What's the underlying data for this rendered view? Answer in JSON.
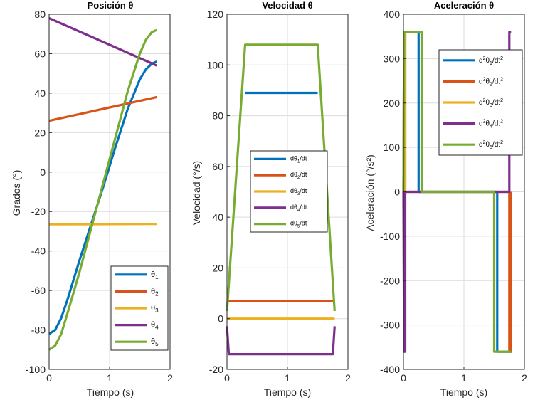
{
  "colors": {
    "blue": "#0072BD",
    "orange": "#D95319",
    "yellow": "#EDB120",
    "purple": "#7E2F8E",
    "green": "#77AC30",
    "grid": "#dcdcdc",
    "axis": "#262626"
  },
  "chart_data": [
    {
      "type": "line",
      "title": "Posición θ",
      "xlabel": "Tiempo (s)",
      "ylabel": "Grados (°)",
      "xlim": [
        0,
        2
      ],
      "ylim": [
        -100,
        80
      ],
      "xticks": [
        0,
        1,
        2
      ],
      "yticks": [
        -100,
        -80,
        -60,
        -40,
        -20,
        0,
        20,
        40,
        60,
        80
      ],
      "grid": true,
      "legend": "bottom-right",
      "series": [
        {
          "name": "θ1",
          "color": "blue",
          "x": [
            0,
            0.1,
            0.2,
            0.3,
            0.5,
            0.7,
            0.9,
            1.1,
            1.3,
            1.5,
            1.6,
            1.7,
            1.78
          ],
          "y": [
            -82,
            -80,
            -74,
            -65,
            -45,
            -26,
            -7,
            13,
            32,
            47,
            52,
            55,
            56
          ]
        },
        {
          "name": "θ2",
          "color": "orange",
          "x": [
            0,
            1.78
          ],
          "y": [
            26,
            38
          ]
        },
        {
          "name": "θ3",
          "color": "yellow",
          "x": [
            0,
            1.78
          ],
          "y": [
            -26.5,
            -26.3
          ]
        },
        {
          "name": "θ4",
          "color": "purple",
          "x": [
            0,
            1.78
          ],
          "y": [
            78,
            54
          ]
        },
        {
          "name": "θ5",
          "color": "green",
          "x": [
            0,
            0.1,
            0.2,
            0.3,
            0.5,
            0.7,
            0.9,
            1.1,
            1.3,
            1.5,
            1.6,
            1.7,
            1.78
          ],
          "y": [
            -90,
            -88,
            -82,
            -72,
            -51,
            -28,
            -5,
            18,
            41,
            60,
            67,
            71,
            72
          ]
        }
      ]
    },
    {
      "type": "line",
      "title": "Velocidad θ",
      "xlabel": "Tiempo (s)",
      "ylabel": "Velocidad (°/s)",
      "xlim": [
        0,
        2
      ],
      "ylim": [
        -20,
        120
      ],
      "xticks": [
        0,
        1,
        2
      ],
      "yticks": [
        -20,
        0,
        20,
        40,
        60,
        80,
        100,
        120
      ],
      "grid": true,
      "legend": "center-right",
      "series": [
        {
          "name": "dθ1/dt",
          "color": "blue",
          "x": [
            0.3,
            1.5
          ],
          "y": [
            89,
            89
          ]
        },
        {
          "name": "dθ2/dt",
          "color": "orange",
          "x": [
            0,
            1.78
          ],
          "y": [
            7,
            7
          ]
        },
        {
          "name": "dθ3/dt",
          "color": "yellow",
          "x": [
            0,
            1.78
          ],
          "y": [
            0,
            0
          ]
        },
        {
          "name": "dθ4/dt",
          "color": "purple",
          "x": [
            0,
            0.03,
            1.75,
            1.78
          ],
          "y": [
            -3,
            -14,
            -14,
            -3
          ]
        },
        {
          "name": "dθ5/dt",
          "color": "green",
          "x": [
            0,
            0.3,
            1.5,
            1.78
          ],
          "y": [
            3,
            108,
            108,
            3
          ]
        }
      ]
    },
    {
      "type": "line",
      "title": "Aceleración θ",
      "xlabel": "Tiempo (s)",
      "ylabel": "Aceleración (°/s²)",
      "xlim": [
        0,
        2
      ],
      "ylim": [
        -400,
        400
      ],
      "xticks": [
        0,
        1,
        2
      ],
      "yticks": [
        -400,
        -300,
        -200,
        -100,
        0,
        100,
        200,
        300,
        400
      ],
      "grid": true,
      "legend": "top-right",
      "series": [
        {
          "name": "d²θ1/dt²",
          "color": "blue",
          "x": [
            0.01,
            0.01,
            0.25,
            0.25,
            1.55,
            1.55,
            1.78
          ],
          "y": [
            0,
            360,
            360,
            0,
            0,
            -360,
            -360
          ]
        },
        {
          "name": "d²θ2/dt²",
          "color": "orange",
          "x": [
            0,
            0.01,
            0.03,
            0.03,
            1.75,
            1.75,
            1.78,
            1.78
          ],
          "y": [
            0,
            360,
            360,
            0,
            0,
            -360,
            -360,
            0
          ]
        },
        {
          "name": "d²θ3/dt²",
          "color": "yellow",
          "x": [
            0,
            0.01,
            0.03,
            0.03
          ],
          "y": [
            0,
            360,
            360,
            0
          ]
        },
        {
          "name": "d²θ4/dt²",
          "color": "purple",
          "x": [
            0,
            0.01,
            0.03,
            0.03,
            1.75,
            1.75,
            1.78
          ],
          "y": [
            0,
            -360,
            -360,
            0,
            0,
            360,
            360
          ]
        },
        {
          "name": "d²θ5/dt²",
          "color": "green",
          "x": [
            0,
            0.01,
            0.3,
            0.3,
            1.5,
            1.5,
            1.78
          ],
          "y": [
            0,
            360,
            360,
            0,
            0,
            -360,
            -360
          ]
        }
      ]
    }
  ]
}
